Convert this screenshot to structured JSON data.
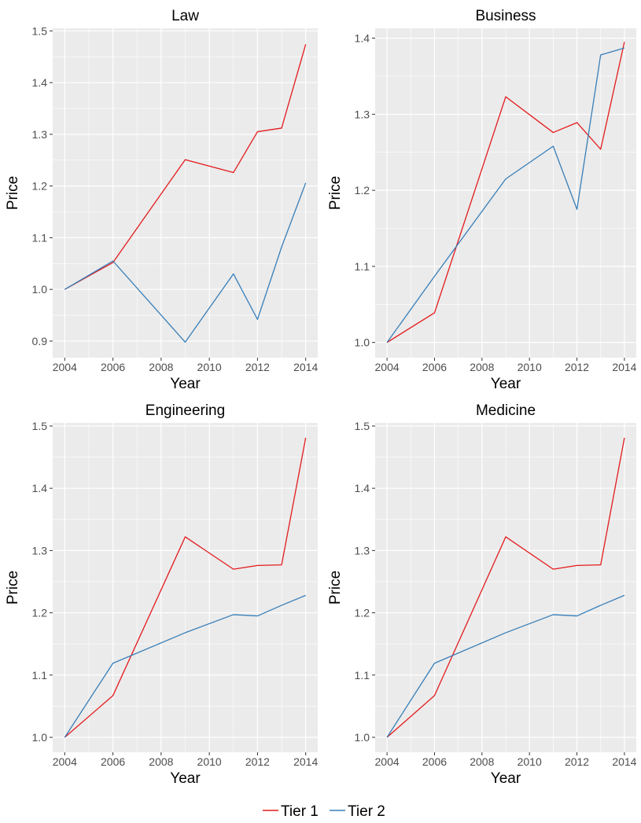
{
  "legend": {
    "position": "bottom",
    "entries": [
      {
        "label": "Tier 1",
        "color": "#e41a1c"
      },
      {
        "label": "Tier 2",
        "color": "#377eb8"
      }
    ]
  },
  "chart_data": [
    {
      "type": "line",
      "title": "Law",
      "xlabel": "Year",
      "ylabel": "Price",
      "x": [
        2004,
        2006,
        2009,
        2011,
        2012,
        2013,
        2014
      ],
      "xlim": [
        2003.5,
        2014.5
      ],
      "ylim": [
        0.868,
        1.505
      ],
      "xticks": [
        2004,
        2006,
        2008,
        2010,
        2012,
        2014
      ],
      "yticks": [
        0.9,
        1.0,
        1.1,
        1.2,
        1.3,
        1.4,
        1.5
      ],
      "grid": true,
      "series": [
        {
          "name": "Tier 1",
          "color": "#e41a1c",
          "values": [
            1.0,
            1.052,
            1.251,
            1.226,
            1.305,
            1.312,
            1.474
          ]
        },
        {
          "name": "Tier 2",
          "color": "#377eb8",
          "values": [
            1.0,
            1.055,
            0.898,
            1.03,
            0.942,
            1.082,
            1.206
          ]
        }
      ]
    },
    {
      "type": "line",
      "title": "Business",
      "xlabel": "Year",
      "ylabel": "Price",
      "x": [
        2004,
        2006,
        2009,
        2011,
        2012,
        2013,
        2014
      ],
      "xlim": [
        2003.5,
        2014.5
      ],
      "ylim": [
        0.98,
        1.413
      ],
      "xticks": [
        2004,
        2006,
        2008,
        2010,
        2012,
        2014
      ],
      "yticks": [
        1.0,
        1.1,
        1.2,
        1.3,
        1.4
      ],
      "grid": true,
      "series": [
        {
          "name": "Tier 1",
          "color": "#e41a1c",
          "values": [
            1.0,
            1.039,
            1.323,
            1.276,
            1.289,
            1.254,
            1.395
          ]
        },
        {
          "name": "Tier 2",
          "color": "#377eb8",
          "values": [
            1.0,
            1.087,
            1.215,
            1.258,
            1.175,
            1.378,
            1.387
          ]
        }
      ]
    },
    {
      "type": "line",
      "title": "Engineering",
      "xlabel": "Year",
      "ylabel": "Price",
      "x": [
        2004,
        2006,
        2009,
        2011,
        2012,
        2013,
        2014
      ],
      "xlim": [
        2003.5,
        2014.5
      ],
      "ylim": [
        0.976,
        1.505
      ],
      "xticks": [
        2004,
        2006,
        2008,
        2010,
        2012,
        2014
      ],
      "yticks": [
        1.0,
        1.1,
        1.2,
        1.3,
        1.4,
        1.5
      ],
      "grid": true,
      "series": [
        {
          "name": "Tier 1",
          "color": "#e41a1c",
          "values": [
            1.0,
            1.067,
            1.322,
            1.27,
            1.276,
            1.277,
            1.481
          ]
        },
        {
          "name": "Tier 2",
          "color": "#377eb8",
          "values": [
            1.0,
            1.119,
            1.168,
            1.197,
            1.195,
            1.212,
            1.228
          ]
        }
      ]
    },
    {
      "type": "line",
      "title": "Medicine",
      "xlabel": "Year",
      "ylabel": "Price",
      "x": [
        2004,
        2006,
        2009,
        2011,
        2012,
        2013,
        2014
      ],
      "xlim": [
        2003.5,
        2014.5
      ],
      "ylim": [
        0.976,
        1.505
      ],
      "xticks": [
        2004,
        2006,
        2008,
        2010,
        2012,
        2014
      ],
      "yticks": [
        1.0,
        1.1,
        1.2,
        1.3,
        1.4,
        1.5
      ],
      "grid": true,
      "series": [
        {
          "name": "Tier 1",
          "color": "#e41a1c",
          "values": [
            1.0,
            1.067,
            1.322,
            1.27,
            1.276,
            1.277,
            1.481
          ]
        },
        {
          "name": "Tier 2",
          "color": "#377eb8",
          "values": [
            1.0,
            1.119,
            1.168,
            1.197,
            1.195,
            1.212,
            1.228
          ]
        }
      ]
    }
  ]
}
